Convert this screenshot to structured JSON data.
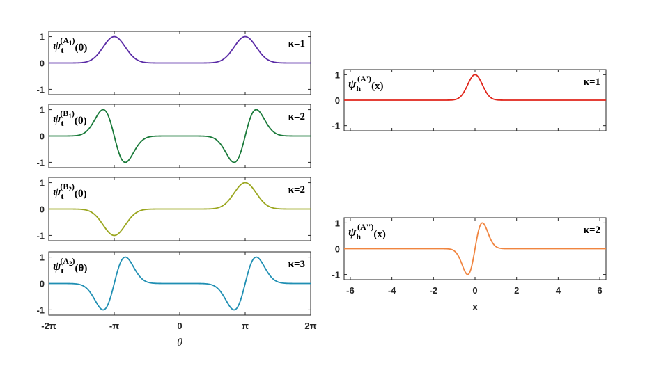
{
  "chart_data": [
    {
      "type": "line",
      "id": "tA1",
      "label": {
        "psi": "ψ",
        "sub": "t",
        "sup_main": "(A",
        "sup_sub": "1",
        "sup_close": ")",
        "arg": "(θ)"
      },
      "kappa": "κ=1",
      "color": "#5a2ba6",
      "curve": {
        "kind": "even",
        "centers": [
          -3.1416,
          3.1416
        ],
        "width": 0.75
      },
      "ylim": [
        -1.2,
        1.2
      ],
      "yticks": [
        {
          "v": 1,
          "t": "1"
        },
        {
          "v": 0,
          "t": "0"
        },
        {
          "v": -1,
          "t": "-1"
        }
      ]
    },
    {
      "type": "line",
      "id": "tB1",
      "label": {
        "psi": "ψ",
        "sub": "t",
        "sup_main": "(B",
        "sup_sub": "1",
        "sup_close": ")",
        "arg": "(θ)"
      },
      "kappa": "κ=2",
      "color": "#1a7a3a",
      "curve": {
        "kind": "odd",
        "centers": [
          -3.1416,
          3.1416
        ],
        "signs": [
          1,
          -1
        ],
        "width": 0.75
      },
      "ylim": [
        -1.2,
        1.2
      ],
      "yticks": [
        {
          "v": 1,
          "t": "1"
        },
        {
          "v": 0,
          "t": "0"
        },
        {
          "v": -1,
          "t": "-1"
        }
      ]
    },
    {
      "type": "line",
      "id": "tB2",
      "label": {
        "psi": "ψ",
        "sub": "t",
        "sup_main": "(B",
        "sup_sub": "2",
        "sup_close": ")",
        "arg": "(θ)"
      },
      "kappa": "κ=2",
      "color": "#9aa61e",
      "curve": {
        "kind": "even",
        "centers": [
          -3.1416,
          3.1416
        ],
        "signs": [
          -1,
          1
        ],
        "width": 0.75
      },
      "ylim": [
        -1.2,
        1.2
      ],
      "yticks": [
        {
          "v": 1,
          "t": "1"
        },
        {
          "v": 0,
          "t": "0"
        },
        {
          "v": -1,
          "t": "-1"
        }
      ]
    },
    {
      "type": "line",
      "id": "tA2",
      "label": {
        "psi": "ψ",
        "sub": "t",
        "sup_main": "(A",
        "sup_sub": "2",
        "sup_close": ")",
        "arg": "(θ)"
      },
      "kappa": "κ=3",
      "color": "#1f8fb3",
      "curve": {
        "kind": "odd",
        "centers": [
          -3.1416,
          3.1416
        ],
        "signs": [
          -1,
          -1
        ],
        "width": 0.75
      },
      "ylim": [
        -1.2,
        1.2
      ],
      "yticks": [
        {
          "v": 1,
          "t": "1"
        },
        {
          "v": 0,
          "t": "0"
        },
        {
          "v": -1,
          "t": "-1"
        }
      ],
      "xticks": [
        {
          "v": -6.2832,
          "t": "-2π"
        },
        {
          "v": -3.1416,
          "t": "-π"
        },
        {
          "v": 0,
          "t": "0"
        },
        {
          "v": 3.1416,
          "t": "π"
        },
        {
          "v": 6.2832,
          "t": "2π"
        }
      ],
      "xlabel": "θ"
    },
    {
      "type": "line",
      "id": "hA1",
      "label": {
        "psi": "ψ",
        "sub": "h",
        "sup_main": "(A",
        "sup_sub": "",
        "sup_close": "')",
        "arg": "(x)"
      },
      "kappa": "κ=1",
      "color": "#e0261b",
      "curve": {
        "kind": "even",
        "centers": [
          0
        ],
        "width": 0.5
      },
      "ylim": [
        -1.2,
        1.2
      ],
      "yticks": [
        {
          "v": 1,
          "t": "1"
        },
        {
          "v": 0,
          "t": "0"
        },
        {
          "v": -1,
          "t": "-1"
        }
      ]
    },
    {
      "type": "line",
      "id": "hA2",
      "label": {
        "psi": "ψ",
        "sub": "h",
        "sup_main": "(A",
        "sup_sub": "",
        "sup_close": "'')",
        "arg": "(x)"
      },
      "kappa": "κ=2",
      "color": "#f08540",
      "curve": {
        "kind": "odd",
        "centers": [
          0
        ],
        "signs": [
          -1
        ],
        "width": 0.5
      },
      "ylim": [
        -1.2,
        1.2
      ],
      "yticks": [
        {
          "v": 1,
          "t": "1"
        },
        {
          "v": 0,
          "t": "0"
        },
        {
          "v": -1,
          "t": "-1"
        }
      ],
      "xticks": [
        {
          "v": -6,
          "t": "-6"
        },
        {
          "v": -4,
          "t": "-4"
        },
        {
          "v": -2,
          "t": "-2"
        },
        {
          "v": 0,
          "t": "0"
        },
        {
          "v": 2,
          "t": "2"
        },
        {
          "v": 4,
          "t": "4"
        },
        {
          "v": 6,
          "t": "6"
        }
      ],
      "xlabel": "x"
    }
  ]
}
